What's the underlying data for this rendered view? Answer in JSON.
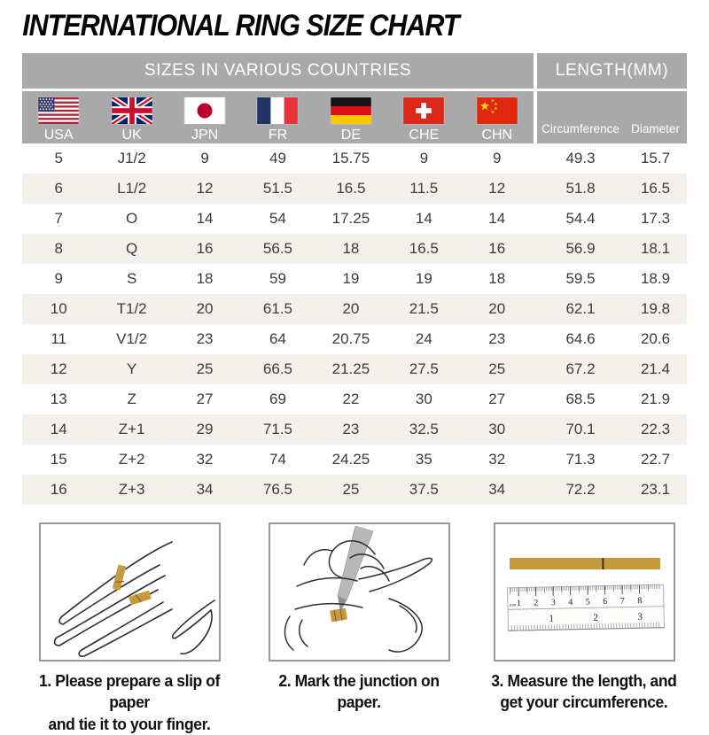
{
  "title": "INTERNATIONAL RING SIZE CHART",
  "header": {
    "countries_group": "SIZES IN VARIOUS COUNTRIES",
    "length_group": "LENGTH(MM)"
  },
  "columns": [
    {
      "code": "USA",
      "icon": "usa-flag-icon"
    },
    {
      "code": "UK",
      "icon": "uk-flag-icon"
    },
    {
      "code": "JPN",
      "icon": "japan-flag-icon"
    },
    {
      "code": "FR",
      "icon": "france-flag-icon"
    },
    {
      "code": "DE",
      "icon": "germany-flag-icon"
    },
    {
      "code": "CHE",
      "icon": "switzerland-flag-icon"
    },
    {
      "code": "CHN",
      "icon": "china-flag-icon"
    }
  ],
  "length_columns": [
    "Circumference",
    "Diameter"
  ],
  "chart_data": {
    "type": "table",
    "title": "INTERNATIONAL RING SIZE CHART",
    "column_groups": [
      "SIZES IN VARIOUS COUNTRIES",
      "LENGTH(MM)"
    ],
    "columns": [
      "USA",
      "UK",
      "JPN",
      "FR",
      "DE",
      "CHE",
      "CHN",
      "Circumference",
      "Diameter"
    ],
    "rows": [
      [
        "5",
        "J1/2",
        "9",
        "49",
        "15.75",
        "9",
        "9",
        "49.3",
        "15.7"
      ],
      [
        "6",
        "L1/2",
        "12",
        "51.5",
        "16.5",
        "11.5",
        "12",
        "51.8",
        "16.5"
      ],
      [
        "7",
        "O",
        "14",
        "54",
        "17.25",
        "14",
        "14",
        "54.4",
        "17.3"
      ],
      [
        "8",
        "Q",
        "16",
        "56.5",
        "18",
        "16.5",
        "16",
        "56.9",
        "18.1"
      ],
      [
        "9",
        "S",
        "18",
        "59",
        "19",
        "19",
        "18",
        "59.5",
        "18.9"
      ],
      [
        "10",
        "T1/2",
        "20",
        "61.5",
        "20",
        "21.5",
        "20",
        "62.1",
        "19.8"
      ],
      [
        "11",
        "V1/2",
        "23",
        "64",
        "20.75",
        "24",
        "23",
        "64.6",
        "20.6"
      ],
      [
        "12",
        "Y",
        "25",
        "66.5",
        "21.25",
        "27.5",
        "25",
        "67.2",
        "21.4"
      ],
      [
        "13",
        "Z",
        "27",
        "69",
        "22",
        "30",
        "27",
        "68.5",
        "21.9"
      ],
      [
        "14",
        "Z+1",
        "29",
        "71.5",
        "23",
        "32.5",
        "30",
        "70.1",
        "22.3"
      ],
      [
        "15",
        "Z+2",
        "32",
        "74",
        "24.25",
        "35",
        "32",
        "71.3",
        "22.7"
      ],
      [
        "16",
        "Z+3",
        "34",
        "76.5",
        "25",
        "37.5",
        "34",
        "72.2",
        "23.1"
      ]
    ]
  },
  "instructions": [
    {
      "icon": "hand-paper-slip-icon",
      "lines": [
        "1. Please prepare a slip of paper",
        "and tie it to your finger."
      ]
    },
    {
      "icon": "mark-junction-icon",
      "lines": [
        "2. Mark the junction on paper.",
        ""
      ]
    },
    {
      "icon": "ruler-measure-icon",
      "lines": [
        "3. Measure the length, and",
        "get your circumference."
      ]
    }
  ],
  "ruler": {
    "unit_label": "mm",
    "mm_numbers": [
      "1",
      "2",
      "3",
      "4",
      "5",
      "6",
      "7",
      "8"
    ],
    "inch_numbers": [
      "1",
      "2",
      "3"
    ]
  },
  "colors": {
    "header_gray": "#a9a9a9",
    "stripe_beige": "#f4f1ed",
    "paper_gold": "#c49b3e",
    "box_border_gray": "#9a9a9a",
    "text_dark": "#3b3b3b"
  }
}
